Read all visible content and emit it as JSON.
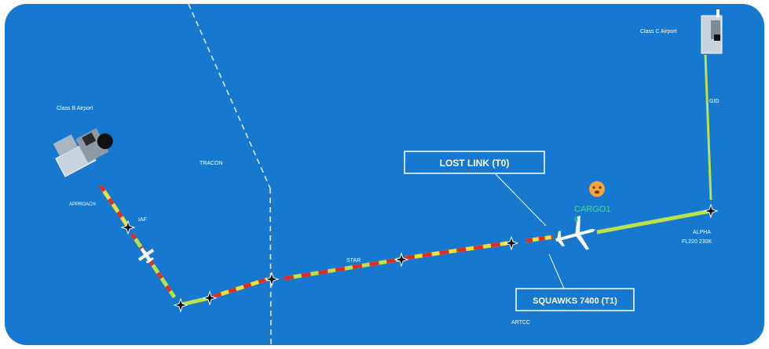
{
  "colors": {
    "background": "#1778d0",
    "frame": "#ffffff",
    "route_dash_red": "#d9302c",
    "route_dash_yellow": "#e8e23a",
    "route_dash_green": "#b9e34a",
    "cleared_route": "#b9e34a",
    "boundary_line": "#ffffff",
    "callsign": "#39e27a",
    "alert_icon": "#f2a33a"
  },
  "labels": {
    "class_b_airport": "Class B Airport",
    "class_c_airport": "Class C Airport",
    "approach": "APPROACH",
    "iaf": "IAF",
    "tracon": "TRACON",
    "star": "STAR",
    "artcc": "ARTCC",
    "gid": "GID",
    "alpha_fix": "ALPHA",
    "alpha_altitude": "FL220 230K"
  },
  "callouts": {
    "lost_link": "LOST LINK (T0)",
    "squawks": "SQUAWKS 7400 (T1)"
  },
  "aircraft": {
    "callsign": "CARGO1",
    "data_tag": "6",
    "alert_icon": "warning-face-icon"
  }
}
